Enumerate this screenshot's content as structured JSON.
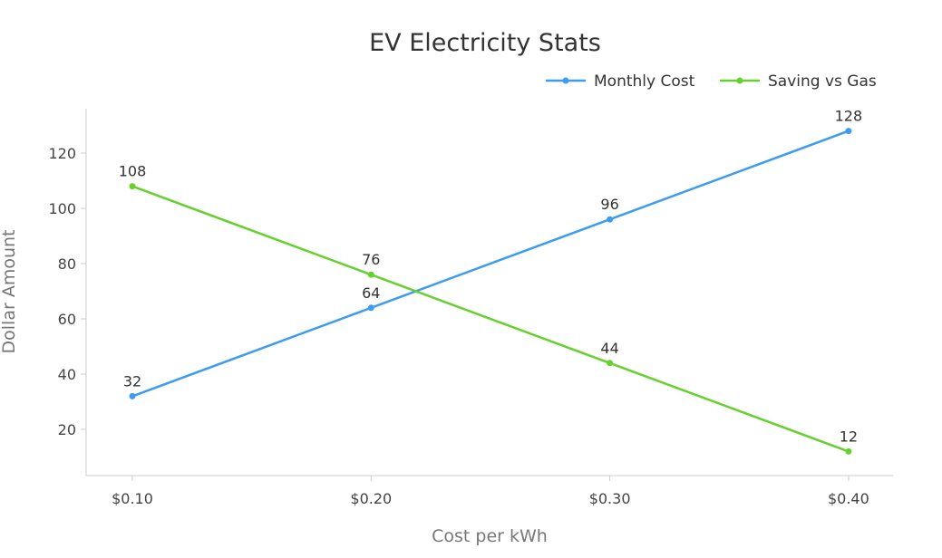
{
  "chart_data": {
    "type": "line",
    "title": "EV Electricity Stats",
    "xlabel": "Cost per kWh",
    "ylabel": "Dollar Amount",
    "categories": [
      "$0.10",
      "$0.20",
      "$0.30",
      "$0.40"
    ],
    "yticks": [
      20,
      40,
      60,
      80,
      100,
      120
    ],
    "ylim": [
      0,
      136
    ],
    "grid": false,
    "legend_position": "top-right",
    "series": [
      {
        "name": "Monthly Cost",
        "color": "#3d9cf0",
        "values": [
          32,
          64,
          96,
          128
        ]
      },
      {
        "name": "Saving vs Gas",
        "color": "#66d12e",
        "values": [
          108,
          76,
          44,
          12
        ]
      }
    ]
  }
}
